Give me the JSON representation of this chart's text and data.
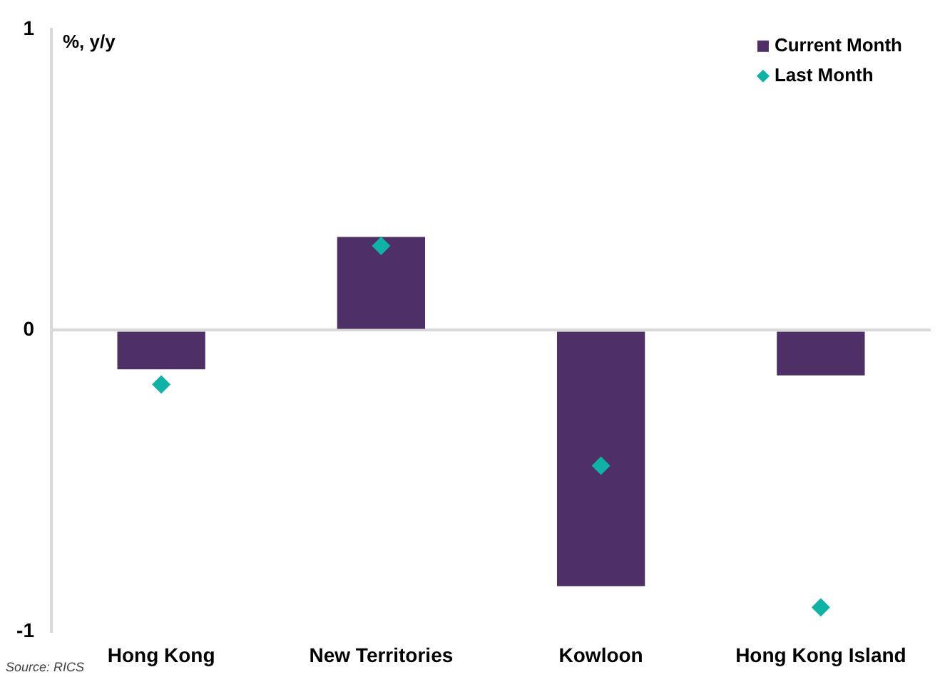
{
  "chart_data": {
    "type": "bar",
    "ylabel": "%, y/y",
    "categories": [
      "Hong Kong",
      "New Territories",
      "Kowloon",
      "Hong Kong Island"
    ],
    "series": [
      {
        "name": "Current Month",
        "color": "#4e3066",
        "values": [
          -0.13,
          0.31,
          -0.85,
          -0.15
        ]
      },
      {
        "name": "Last Month",
        "type": "scatter",
        "color": "#0fb3a5",
        "marker": "diamond",
        "values": [
          -0.18,
          0.28,
          -0.45,
          -0.92
        ]
      }
    ],
    "ylim": [
      -1,
      1
    ],
    "yticks": [
      -1,
      0,
      1
    ],
    "legend": "top right",
    "annotations": [
      "Source: RICS"
    ]
  }
}
